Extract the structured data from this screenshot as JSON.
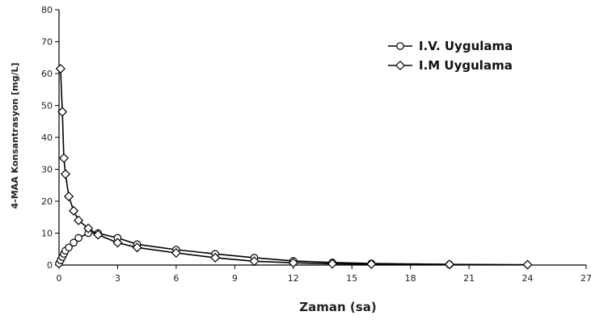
{
  "chart_data": {
    "type": "line",
    "title": "",
    "xlabel": "Zaman (sa)",
    "ylabel": "4-MAA  Konsantrasyon  [mg/L]",
    "xlim": [
      0,
      27
    ],
    "ylim": [
      0,
      80
    ],
    "x_ticks": [
      0,
      3,
      6,
      9,
      12,
      15,
      18,
      21,
      24,
      27
    ],
    "x_tick_labels": [
      "0",
      "3",
      "6",
      "9",
      "12",
      "15",
      "18",
      "21",
      "24",
      "27"
    ],
    "y_ticks": [
      0,
      10,
      20,
      30,
      40,
      50,
      60,
      70,
      80
    ],
    "y_tick_labels": [
      "0",
      "10",
      "20",
      "30",
      "40",
      "50",
      "60",
      "70",
      "80"
    ],
    "grid": false,
    "legend_position": "top-right",
    "series": [
      {
        "name": "I.V. Uygulama",
        "marker": "circle",
        "x": [
          0,
          0.08,
          0.17,
          0.25,
          0.33,
          0.5,
          0.75,
          1,
          1.5,
          2,
          3,
          4,
          6,
          8,
          10,
          12,
          14,
          16,
          20
        ],
        "y": [
          0.5,
          1.5,
          2.5,
          3.5,
          4.5,
          5.5,
          7,
          8.5,
          10,
          10,
          8.5,
          6.5,
          4.8,
          3.5,
          2.3,
          1.3,
          0.8,
          0.5,
          0.2
        ]
      },
      {
        "name": "I.M Uygulama",
        "marker": "diamond",
        "x": [
          0.08,
          0.17,
          0.25,
          0.33,
          0.5,
          0.75,
          1,
          1.5,
          2,
          3,
          4,
          6,
          8,
          10,
          12,
          14,
          16,
          20,
          24
        ],
        "y": [
          61.5,
          48,
          33.5,
          28.5,
          21.5,
          17,
          14,
          11.5,
          9.5,
          7,
          5.5,
          3.8,
          2.3,
          1.2,
          0.7,
          0.4,
          0.3,
          0.2,
          0.1
        ]
      }
    ]
  }
}
